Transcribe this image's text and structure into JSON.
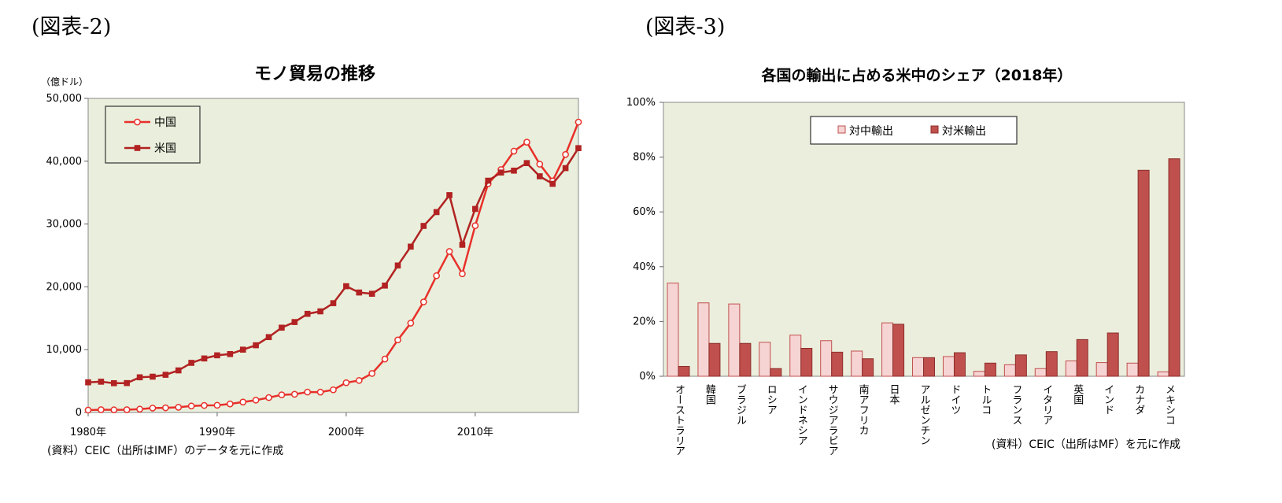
{
  "labels": {
    "left": "(図表-2)",
    "right": "(図表-3)"
  },
  "chart_data": [
    {
      "type": "line",
      "title": "モノ貿易の推移",
      "unit_label": "（億ドル）",
      "source_note": "(資料）CEIC（出所はIMF）のデータを元に作成",
      "x_tick_labels": [
        "1980年",
        "1990年",
        "2000年",
        "2010年"
      ],
      "x_ticks": [
        1980,
        1990,
        2000,
        2010
      ],
      "y_tick_labels": [
        "0",
        "10,000",
        "20,000",
        "30,000",
        "40,000",
        "50,000"
      ],
      "xlim": [
        1980,
        2018
      ],
      "ylim": [
        0,
        50000
      ],
      "legend_position": "top-left",
      "colors": {
        "china": "#e8302a",
        "usa": "#b22222",
        "plot_bg": "#e9efdc"
      },
      "x": [
        1980,
        1981,
        1982,
        1983,
        1984,
        1985,
        1986,
        1987,
        1988,
        1989,
        1990,
        1991,
        1992,
        1993,
        1994,
        1995,
        1996,
        1997,
        1998,
        1999,
        2000,
        2001,
        2002,
        2003,
        2004,
        2005,
        2006,
        2007,
        2008,
        2009,
        2010,
        2011,
        2012,
        2013,
        2014,
        2015,
        2016,
        2017,
        2018
      ],
      "series": [
        {
          "name": "中国",
          "marker": "circle",
          "values": [
            380,
            440,
            420,
            440,
            530,
            700,
            740,
            830,
            1030,
            1120,
            1150,
            1360,
            1660,
            1960,
            2370,
            2810,
            2900,
            3250,
            3240,
            3610,
            4740,
            5100,
            6210,
            8510,
            11550,
            14220,
            17600,
            21770,
            25630,
            22080,
            29740,
            36420,
            38670,
            41600,
            43030,
            39530,
            36860,
            41070,
            46230
          ]
        },
        {
          "name": "米国",
          "marker": "square",
          "values": [
            4800,
            4900,
            4660,
            4680,
            5600,
            5700,
            6000,
            6700,
            7900,
            8600,
            9100,
            9300,
            10000,
            10700,
            12000,
            13500,
            14400,
            15700,
            16100,
            17400,
            20100,
            19100,
            18900,
            20200,
            23400,
            26400,
            29700,
            31900,
            34600,
            26700,
            32400,
            36900,
            38200,
            38500,
            39700,
            37600,
            36400,
            38900,
            42080
          ]
        }
      ]
    },
    {
      "type": "bar",
      "title": "各国の輸出に占める米中のシェア（2018年）",
      "source_note": "(資料）CEIC（出所はMF）を元に作成",
      "y_tick_labels": [
        "0%",
        "20%",
        "40%",
        "60%",
        "80%",
        "100%"
      ],
      "ylim": [
        0,
        100
      ],
      "legend_position": "top-left",
      "colors": {
        "china": "#f6d4d4",
        "china_border": "#c0504d",
        "usa": "#c0504d",
        "usa_border": "#8b2e2b",
        "plot_bg": "#eceedd"
      },
      "categories": [
        "オーストラリア",
        "韓国",
        "ブラジル",
        "ロシア",
        "インドネシア",
        "サウジアラビア",
        "南アフリカ",
        "日本",
        "アルゼンチン",
        "ドイツ",
        "トルコ",
        "フランス",
        "イタリア",
        "英国",
        "インド",
        "カナダ",
        "メキシコ"
      ],
      "series": [
        {
          "name": "対中輸出",
          "values": [
            34,
            26.8,
            26.4,
            12.4,
            15,
            13,
            9.2,
            19.5,
            6.8,
            7.2,
            1.8,
            4.2,
            2.8,
            5.6,
            5,
            4.8,
            1.6
          ]
        },
        {
          "name": "対米輸出",
          "values": [
            3.6,
            12,
            12,
            2.8,
            10.2,
            8.8,
            6.4,
            19,
            6.8,
            8.6,
            4.8,
            7.8,
            9,
            13.4,
            15.8,
            75.2,
            79.4
          ]
        }
      ]
    }
  ]
}
